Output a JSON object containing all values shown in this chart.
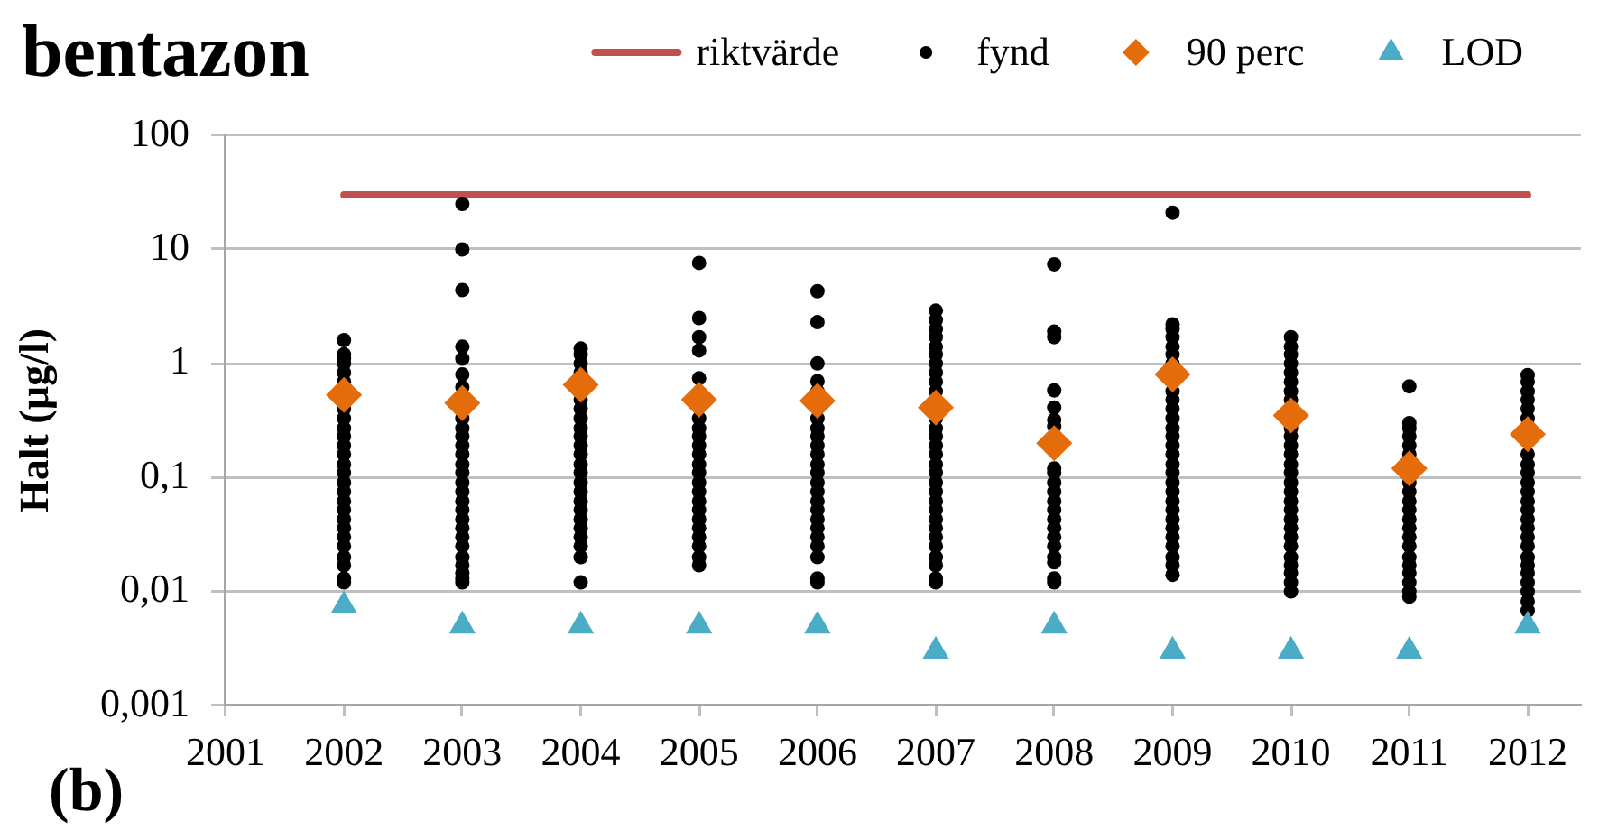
{
  "chart_data": {
    "type": "scatter",
    "title": "bentazon",
    "ylabel": "Halt (µg/l)",
    "annotations": [
      "(b)"
    ],
    "log": "y",
    "grid": "y",
    "legend": "top right",
    "xlim": [
      2001,
      2012.45
    ],
    "xticks": [
      2001,
      2002,
      2003,
      2004,
      2005,
      2006,
      2007,
      2008,
      2009,
      2010,
      2011,
      2012
    ],
    "ylim": [
      0.001,
      100
    ],
    "yticks": [
      {
        "value": 0.001,
        "label": "0,001"
      },
      {
        "value": 0.01,
        "label": "0,01"
      },
      {
        "value": 0.1,
        "label": "0,1"
      },
      1,
      10,
      100
    ],
    "series": [
      {
        "name": "riktvärde",
        "type": "line",
        "marker": "none",
        "color": "#c0504d",
        "x": [
          2002,
          2012
        ],
        "values": [
          30,
          30
        ]
      },
      {
        "name": "fynd",
        "type": "scatter",
        "marker": "circle",
        "color": "#000000",
        "x": [
          2002,
          2002,
          2002,
          2002,
          2002,
          2002,
          2002,
          2002,
          2002,
          2002,
          2002,
          2002,
          2002,
          2002,
          2002,
          2002,
          2002,
          2002,
          2002,
          2002,
          2002,
          2002,
          2002,
          2002,
          2002,
          2002,
          2003,
          2003,
          2003,
          2003,
          2003,
          2003,
          2003,
          2003,
          2003,
          2003,
          2003,
          2003,
          2003,
          2003,
          2003,
          2003,
          2003,
          2003,
          2003,
          2003,
          2003,
          2003,
          2003,
          2003,
          2003,
          2003,
          2003,
          2004,
          2004,
          2004,
          2004,
          2004,
          2004,
          2004,
          2004,
          2004,
          2004,
          2004,
          2004,
          2004,
          2004,
          2004,
          2004,
          2004,
          2004,
          2004,
          2004,
          2004,
          2004,
          2004,
          2005,
          2005,
          2005,
          2005,
          2005,
          2005,
          2005,
          2005,
          2005,
          2005,
          2005,
          2005,
          2005,
          2005,
          2005,
          2005,
          2005,
          2005,
          2005,
          2005,
          2005,
          2005,
          2006,
          2006,
          2006,
          2006,
          2006,
          2006,
          2006,
          2006,
          2006,
          2006,
          2006,
          2006,
          2006,
          2006,
          2006,
          2006,
          2006,
          2006,
          2006,
          2006,
          2006,
          2006,
          2006,
          2007,
          2007,
          2007,
          2007,
          2007,
          2007,
          2007,
          2007,
          2007,
          2007,
          2007,
          2007,
          2007,
          2007,
          2007,
          2007,
          2007,
          2007,
          2007,
          2007,
          2007,
          2007,
          2007,
          2007,
          2007,
          2007,
          2007,
          2007,
          2007,
          2008,
          2008,
          2008,
          2008,
          2008,
          2008,
          2008,
          2008,
          2008,
          2008,
          2008,
          2008,
          2008,
          2008,
          2008,
          2008,
          2008,
          2008,
          2008,
          2008,
          2008,
          2009,
          2009,
          2009,
          2009,
          2009,
          2009,
          2009,
          2009,
          2009,
          2009,
          2009,
          2009,
          2009,
          2009,
          2009,
          2009,
          2009,
          2009,
          2009,
          2009,
          2009,
          2009,
          2009,
          2009,
          2009,
          2009,
          2009,
          2009,
          2010,
          2010,
          2010,
          2010,
          2010,
          2010,
          2010,
          2010,
          2010,
          2010,
          2010,
          2010,
          2010,
          2010,
          2010,
          2010,
          2010,
          2010,
          2010,
          2010,
          2010,
          2010,
          2010,
          2010,
          2010,
          2010,
          2010,
          2011,
          2011,
          2011,
          2011,
          2011,
          2011,
          2011,
          2011,
          2011,
          2011,
          2011,
          2011,
          2011,
          2011,
          2011,
          2011,
          2011,
          2011,
          2011,
          2011,
          2012,
          2012,
          2012,
          2012,
          2012,
          2012,
          2012,
          2012,
          2012,
          2012,
          2012,
          2012,
          2012,
          2012,
          2012,
          2012,
          2012,
          2012,
          2012,
          2012,
          2012,
          2012,
          2012,
          2012
        ],
        "values": [
          0.012,
          0.013,
          0.017,
          0.02,
          0.025,
          0.03,
          0.036,
          0.043,
          0.052,
          0.062,
          0.075,
          0.09,
          0.11,
          0.13,
          0.16,
          0.19,
          0.23,
          0.27,
          0.33,
          0.4,
          0.69,
          0.83,
          1,
          1.1,
          1.2,
          1.6,
          0.012,
          0.013,
          0.0145,
          0.017,
          0.02,
          0.025,
          0.03,
          0.036,
          0.043,
          0.052,
          0.062,
          0.075,
          0.09,
          0.11,
          0.13,
          0.16,
          0.19,
          0.23,
          0.27,
          0.33,
          0.62,
          0.8,
          1.1,
          1.4,
          4.4,
          10,
          25,
          0.012,
          0.02,
          0.025,
          0.03,
          0.036,
          0.043,
          0.052,
          0.062,
          0.075,
          0.09,
          0.11,
          0.13,
          0.16,
          0.19,
          0.23,
          0.27,
          0.33,
          0.4,
          0.48,
          0.83,
          1,
          1.2,
          1.35,
          0.017,
          0.02,
          0.025,
          0.03,
          0.036,
          0.043,
          0.052,
          0.062,
          0.075,
          0.09,
          0.11,
          0.13,
          0.16,
          0.19,
          0.23,
          0.27,
          0.33,
          0.74,
          1.3,
          1.7,
          2.5,
          7.6,
          0.012,
          0.013,
          0.02,
          0.025,
          0.03,
          0.036,
          0.043,
          0.052,
          0.062,
          0.075,
          0.09,
          0.11,
          0.13,
          0.16,
          0.19,
          0.23,
          0.27,
          0.33,
          0.57,
          0.7,
          1,
          2.3,
          4.3,
          0.012,
          0.013,
          0.017,
          0.02,
          0.025,
          0.03,
          0.036,
          0.043,
          0.052,
          0.062,
          0.075,
          0.09,
          0.11,
          0.13,
          0.16,
          0.19,
          0.23,
          0.27,
          0.33,
          0.57,
          0.69,
          0.83,
          1,
          1.2,
          1.4,
          1.7,
          2,
          2.4,
          2.9,
          0.012,
          0.013,
          0.018,
          0.02,
          0.025,
          0.03,
          0.036,
          0.043,
          0.052,
          0.062,
          0.075,
          0.09,
          0.11,
          0.12,
          0.28,
          0.32,
          0.41,
          0.58,
          1.7,
          1.9,
          7.4,
          0.014,
          0.017,
          0.02,
          0.025,
          0.03,
          0.036,
          0.043,
          0.052,
          0.062,
          0.075,
          0.09,
          0.11,
          0.13,
          0.16,
          0.19,
          0.23,
          0.27,
          0.33,
          0.4,
          0.48,
          0.57,
          1,
          1.2,
          1.4,
          1.7,
          2,
          2.2,
          21,
          0.01,
          0.012,
          0.0145,
          0.017,
          0.02,
          0.025,
          0.03,
          0.036,
          0.043,
          0.052,
          0.062,
          0.075,
          0.09,
          0.11,
          0.13,
          0.16,
          0.19,
          0.23,
          0.27,
          0.48,
          0.57,
          0.69,
          0.83,
          1,
          1.2,
          1.4,
          1.7,
          0.009,
          0.01,
          0.012,
          0.0145,
          0.017,
          0.02,
          0.025,
          0.03,
          0.036,
          0.043,
          0.052,
          0.062,
          0.075,
          0.09,
          0.16,
          0.19,
          0.23,
          0.27,
          0.3,
          0.63,
          0.0068,
          0.0082,
          0.01,
          0.012,
          0.0145,
          0.017,
          0.02,
          0.025,
          0.03,
          0.036,
          0.043,
          0.052,
          0.062,
          0.075,
          0.09,
          0.11,
          0.13,
          0.16,
          0.33,
          0.4,
          0.48,
          0.57,
          0.69,
          0.79
        ]
      },
      {
        "name": "90 perc",
        "type": "scatter",
        "marker": "diamond",
        "color": "#e46c0a",
        "x": [
          2002,
          2003,
          2004,
          2005,
          2006,
          2007,
          2008,
          2009,
          2010,
          2011,
          2012
        ],
        "values": [
          0.53,
          0.45,
          0.65,
          0.48,
          0.47,
          0.41,
          0.2,
          0.8,
          0.35,
          0.12,
          0.24
        ]
      },
      {
        "name": "LOD",
        "type": "scatter",
        "marker": "triangle",
        "color": "#4bacc6",
        "x": [
          2002,
          2003,
          2004,
          2005,
          2006,
          2007,
          2008,
          2009,
          2010,
          2011,
          2012
        ],
        "values": [
          0.0075,
          0.005,
          0.005,
          0.005,
          0.005,
          0.003,
          0.005,
          0.003,
          0.003,
          0.003,
          0.005
        ]
      }
    ]
  }
}
